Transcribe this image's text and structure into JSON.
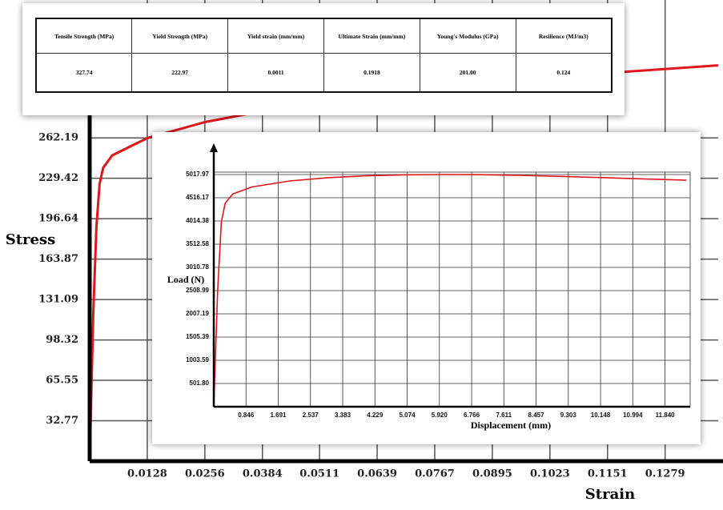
{
  "chart_data": [
    {
      "type": "line",
      "xlabel": "Strain",
      "ylabel": "Stress",
      "color": "#e0161c",
      "grid": true,
      "x": [
        0,
        0.0008,
        0.0015,
        0.0022,
        0.003,
        0.005,
        0.0128,
        0.0256,
        0.04,
        0.06,
        0.08,
        0.1,
        0.12,
        0.1397
      ],
      "values": [
        0,
        120,
        190,
        225,
        238,
        248,
        262,
        275,
        285,
        295,
        303,
        310,
        316,
        321
      ],
      "xlim": [
        0,
        0.1397
      ],
      "ylim": [
        0,
        374
      ],
      "xticks": [
        0.0128,
        0.0256,
        0.0384,
        0.0511,
        0.0639,
        0.0767,
        0.0895,
        0.1023,
        0.1151,
        0.1279
      ],
      "yticks": [
        32.77,
        65.55,
        98.32,
        131.09,
        163.87,
        196.64,
        229.42,
        262.19
      ]
    },
    {
      "type": "line",
      "xlabel": "Displacement (mm)",
      "ylabel": "Load (N)",
      "color": "#e0161c",
      "grid": true,
      "x": [
        0,
        0.1,
        0.2,
        0.3,
        0.5,
        1,
        2,
        3,
        4,
        5,
        6,
        7,
        8,
        9,
        10,
        11,
        12.4
      ],
      "values": [
        0,
        2500,
        4000,
        4400,
        4600,
        4750,
        4880,
        4950,
        4990,
        5010,
        5018,
        5015,
        5000,
        4980,
        4955,
        4930,
        4895
      ],
      "xlim": [
        0,
        12.5
      ],
      "ylim": [
        0,
        5070
      ],
      "xticks": [
        0.846,
        1.691,
        2.537,
        3.383,
        4.229,
        5.074,
        {
          "value": 5.92,
          "label": "5.920"
        },
        6.766,
        7.611,
        8.457,
        9.303,
        10.148,
        10.994,
        {
          "value": 11.84,
          "label": "11.840"
        }
      ],
      "yticks": [
        {
          "value": 501.8,
          "label": "501.80"
        },
        1003.59,
        1505.39,
        2007.19,
        2508.99,
        3010.78,
        3512.58,
        4014.38,
        4516.17,
        5017.97
      ]
    }
  ],
  "table": {
    "headers": [
      "Tensile Strength (MPa)",
      "Yield Strength (MPa)",
      "Yield strain (mm/mm)",
      "Ultimate Strain (mm/mm)",
      "Young's Modulus (GPa)",
      "Resilience (MJ/m3)"
    ],
    "rows": [
      [
        "327.74",
        "222.97",
        "0.0011",
        "0.1918",
        "201.00",
        "0.124"
      ]
    ]
  }
}
